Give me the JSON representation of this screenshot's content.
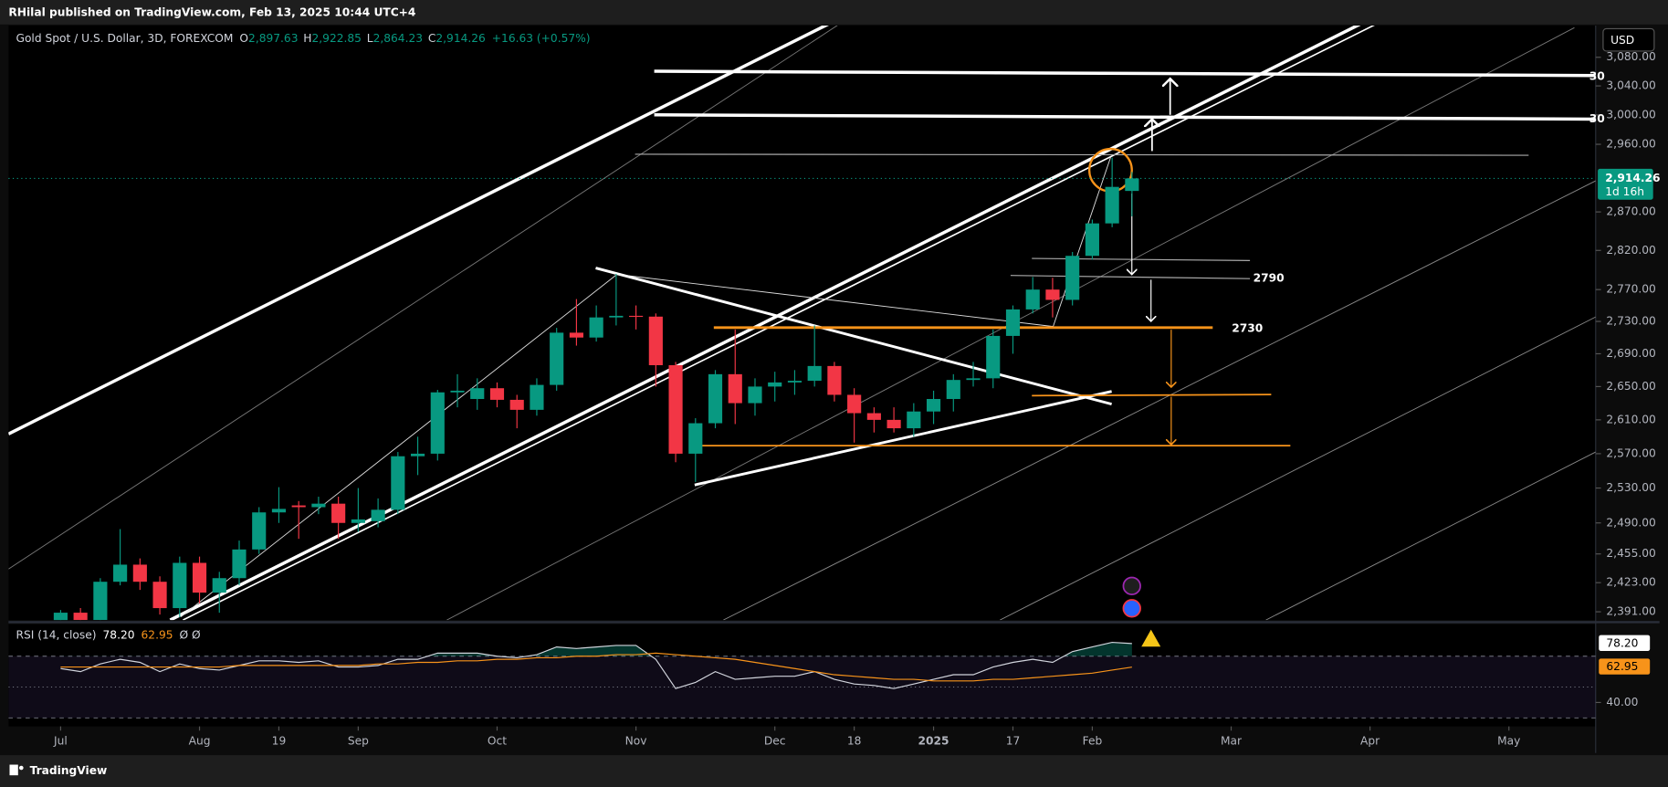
{
  "header": {
    "publisher": "RHilal published on TradingView.com, Feb 13, 2025 10:44 UTC+4",
    "symbol": "Gold Spot / U.S. Dollar, 3D, FOREXCOM",
    "ohlc": [
      {
        "key": "O",
        "value": "2,897.63"
      },
      {
        "key": "H",
        "value": "2,922.85"
      },
      {
        "key": "L",
        "value": "2,864.23"
      },
      {
        "key": "C",
        "value": "2,914.26"
      }
    ],
    "change": "+16.63 (+0.57%)",
    "currency": "USD",
    "last": "2,914.26",
    "countdown": "1d 16h"
  },
  "footer": {
    "brand": "TradingView"
  },
  "chart_data": [
    {
      "type": "candlestick",
      "log": true,
      "up_color": "#089981",
      "down_color": "#f23645",
      "ylim": [
        2382,
        3125
      ],
      "yticks": [
        {
          "value": 3080,
          "label": "3,080.00"
        },
        {
          "value": 3040,
          "label": "3,040.00"
        },
        {
          "value": 3000,
          "label": "3,000.00"
        },
        {
          "value": 2960,
          "label": "2,960.00"
        },
        {
          "value": 2870,
          "label": "2,870.00"
        },
        {
          "value": 2820,
          "label": "2,820.00"
        },
        {
          "value": 2770,
          "label": "2,770.00"
        },
        {
          "value": 2730,
          "label": "2,730.00"
        },
        {
          "value": 2690,
          "label": "2,690.00"
        },
        {
          "value": 2650,
          "label": "2,650.00"
        },
        {
          "value": 2610,
          "label": "2,610.00"
        },
        {
          "value": 2570,
          "label": "2,570.00"
        },
        {
          "value": 2530,
          "label": "2,530.00"
        },
        {
          "value": 2490,
          "label": "2,490.00"
        },
        {
          "value": 2455,
          "label": "2,455.00"
        },
        {
          "value": 2423,
          "label": "2,423.00"
        },
        {
          "value": 2391,
          "label": "2,391.00"
        }
      ],
      "categories": [
        "Jul",
        null,
        null,
        null,
        null,
        null,
        null,
        "Aug",
        null,
        null,
        null,
        "19",
        null,
        null,
        null,
        "Sep",
        null,
        null,
        null,
        null,
        null,
        null,
        "Oct",
        null,
        null,
        null,
        null,
        null,
        null,
        "Nov",
        null,
        null,
        null,
        null,
        null,
        null,
        "Dec",
        null,
        null,
        null,
        "18",
        null,
        null,
        null,
        "2025",
        null,
        null,
        null,
        "17",
        null,
        null,
        null,
        "Feb",
        null,
        null,
        null,
        null,
        null,
        null,
        "Mar",
        null,
        null,
        null,
        null,
        null,
        null,
        "Apr",
        null,
        null,
        null,
        null,
        null,
        null,
        "May",
        null,
        null,
        null,
        null
      ],
      "open": [
        2380,
        2390,
        2382,
        2424,
        2443,
        2424,
        2395,
        2445,
        2412,
        2428,
        2460,
        2502,
        2510,
        2508,
        2512,
        2490,
        2492,
        2505,
        2567,
        2570,
        2643,
        2635,
        2648,
        2634,
        2622,
        2652,
        2716,
        2710,
        2735,
        2737,
        2736,
        2676,
        2570,
        2606,
        2665,
        2630,
        2650,
        2655,
        2657,
        2675,
        2640,
        2618,
        2610,
        2600,
        2620,
        2635,
        2658,
        2660,
        2712,
        2745,
        2770,
        2757,
        2813,
        2855,
        2897.63,
        null,
        null,
        null,
        null,
        null,
        null,
        null,
        null,
        null,
        null,
        null,
        null,
        null,
        null,
        null,
        null,
        null,
        null,
        null,
        null,
        null,
        null,
        null
      ],
      "high": [
        2393,
        2395,
        2428,
        2483,
        2450,
        2430,
        2452,
        2452,
        2435,
        2470,
        2508,
        2531,
        2515,
        2520,
        2520,
        2530,
        2518,
        2572,
        2590,
        2646,
        2665,
        2660,
        2655,
        2640,
        2660,
        2722,
        2758,
        2750,
        2790,
        2750,
        2740,
        2680,
        2612,
        2670,
        2720,
        2660,
        2668,
        2670,
        2725,
        2680,
        2648,
        2625,
        2625,
        2630,
        2645,
        2665,
        2680,
        2720,
        2750,
        2786,
        2785,
        2818,
        2860,
        2942,
        2922.85,
        null,
        null,
        null,
        null,
        null,
        null,
        null,
        null,
        null,
        null,
        null,
        null,
        null,
        null,
        null,
        null,
        null,
        null,
        null,
        null,
        null,
        null,
        null
      ],
      "low": [
        2370,
        2375,
        2370,
        2420,
        2415,
        2388,
        2385,
        2400,
        2390,
        2420,
        2455,
        2490,
        2472,
        2500,
        2472,
        2480,
        2485,
        2500,
        2545,
        2562,
        2625,
        2622,
        2625,
        2600,
        2615,
        2645,
        2700,
        2705,
        2725,
        2720,
        2650,
        2560,
        2537,
        2600,
        2605,
        2615,
        2632,
        2640,
        2650,
        2632,
        2583,
        2595,
        2595,
        2590,
        2605,
        2620,
        2650,
        2648,
        2690,
        2740,
        2735,
        2750,
        2808,
        2850,
        2864.23,
        null,
        null,
        null,
        null,
        null,
        null,
        null,
        null,
        null,
        null,
        null,
        null,
        null,
        null,
        null,
        null,
        null,
        null,
        null,
        null,
        null,
        null,
        null
      ],
      "close": [
        2390,
        2382,
        2424,
        2443,
        2424,
        2395,
        2445,
        2412,
        2428,
        2460,
        2502,
        2506,
        2508,
        2512,
        2490,
        2494,
        2505,
        2567,
        2570,
        2643,
        2645,
        2648,
        2634,
        2622,
        2652,
        2716,
        2710,
        2735,
        2737,
        2736,
        2676,
        2570,
        2606,
        2665,
        2630,
        2650,
        2655,
        2657,
        2675,
        2640,
        2618,
        2610,
        2600,
        2620,
        2635,
        2658,
        2660,
        2712,
        2745,
        2770,
        2757,
        2813,
        2855,
        2903,
        2914.26,
        null,
        null,
        null,
        null,
        null,
        null,
        null,
        null,
        null,
        null,
        null,
        null,
        null,
        null,
        null,
        null,
        null,
        null,
        null,
        null,
        null,
        null,
        null
      ],
      "annotations": [
        "2790",
        "2730",
        "30",
        "30"
      ]
    },
    {
      "type": "line",
      "title": "RSI (14, close)",
      "ylim": [
        24.5,
        90.7
      ],
      "yticks": [
        {
          "value": 40,
          "label": "40.00"
        }
      ],
      "levels": [
        70,
        50,
        30
      ],
      "series": [
        {
          "color": "#d1d4dc",
          "last_label": "78.20",
          "values": [
            62,
            60,
            65,
            68,
            66,
            60,
            65,
            62,
            61,
            64,
            67,
            67,
            66,
            67,
            63,
            63,
            64,
            68,
            68,
            72,
            72,
            72,
            70,
            69,
            71,
            76,
            75,
            76,
            77,
            77,
            68,
            49,
            53,
            60,
            55,
            56,
            57,
            57,
            60,
            55,
            52,
            51,
            49,
            52,
            55,
            58,
            58,
            63,
            66,
            68,
            66,
            73,
            76,
            79,
            78.2,
            null,
            null,
            null,
            null,
            null,
            null,
            null,
            null,
            null,
            null,
            null,
            null,
            null,
            null,
            null,
            null,
            null,
            null,
            null,
            null,
            null,
            null,
            null
          ]
        },
        {
          "color": "#f7931a",
          "last_label": "62.95",
          "values": [
            63,
            63,
            63,
            63,
            63,
            63,
            63,
            63,
            63,
            64,
            64,
            64,
            64,
            64,
            64,
            64,
            65,
            65,
            66,
            66,
            67,
            67,
            68,
            68,
            69,
            69,
            70,
            70,
            71,
            71,
            72,
            71,
            70,
            69,
            68,
            66,
            64,
            62,
            60,
            58,
            57,
            56,
            55,
            55,
            54,
            54,
            54,
            55,
            55,
            56,
            57,
            58,
            59,
            61,
            62.95,
            null,
            null,
            null,
            null,
            null,
            null,
            null,
            null,
            null,
            null,
            null,
            null,
            null,
            null,
            null,
            null,
            null,
            null,
            null,
            null,
            null,
            null,
            null
          ]
        }
      ]
    }
  ]
}
